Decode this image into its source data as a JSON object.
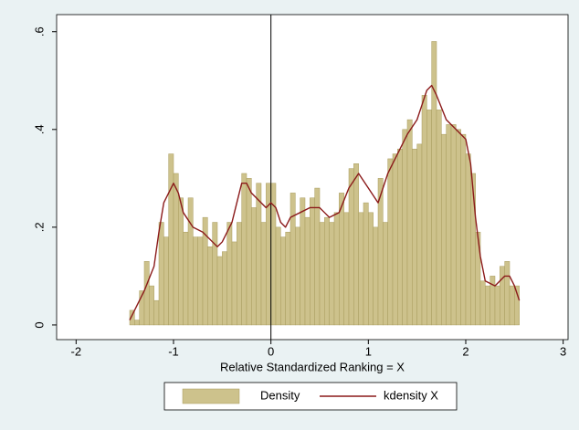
{
  "chart_data": {
    "type": "histogram",
    "xlabel": "Relative Standardized Ranking = X",
    "bins": [
      -1.45,
      -1.4,
      -1.35,
      -1.3,
      -1.25,
      -1.2,
      -1.15,
      -1.1,
      -1.05,
      -1.0,
      -0.95,
      -0.9,
      -0.85,
      -0.8,
      -0.75,
      -0.7,
      -0.65,
      -0.6,
      -0.55,
      -0.5,
      -0.45,
      -0.4,
      -0.35,
      -0.3,
      -0.25,
      -0.2,
      -0.15,
      -0.1,
      -0.05,
      0.0,
      0.05,
      0.1,
      0.15,
      0.2,
      0.25,
      0.3,
      0.35,
      0.4,
      0.45,
      0.5,
      0.55,
      0.6,
      0.65,
      0.7,
      0.75,
      0.8,
      0.85,
      0.9,
      0.95,
      1.0,
      1.05,
      1.1,
      1.15,
      1.2,
      1.25,
      1.3,
      1.35,
      1.4,
      1.45,
      1.5,
      1.55,
      1.6,
      1.65,
      1.7,
      1.75,
      1.8,
      1.85,
      1.9,
      1.95,
      2.0,
      2.05,
      2.1,
      2.15,
      2.2,
      2.25,
      2.3,
      2.35,
      2.4,
      2.45,
      2.5,
      2.55
    ],
    "series": [
      {
        "name": "Density",
        "color": "#cdc28c",
        "values": [
          0.03,
          0.01,
          0.07,
          0.13,
          0.08,
          0.05,
          0.21,
          0.18,
          0.35,
          0.31,
          0.26,
          0.19,
          0.26,
          0.18,
          0.18,
          0.22,
          0.16,
          0.21,
          0.14,
          0.15,
          0.21,
          0.17,
          0.21,
          0.31,
          0.3,
          0.24,
          0.29,
          0.21,
          0.29,
          0.29,
          0.2,
          0.18,
          0.19,
          0.27,
          0.2,
          0.26,
          0.22,
          0.26,
          0.28,
          0.21,
          0.22,
          0.21,
          0.23,
          0.27,
          0.23,
          0.32,
          0.33,
          0.23,
          0.25,
          0.23,
          0.2,
          0.3,
          0.21,
          0.34,
          0.35,
          0.36,
          0.4,
          0.42,
          0.36,
          0.37,
          0.47,
          0.44,
          0.58,
          0.44,
          0.39,
          0.41,
          0.41,
          0.4,
          0.39,
          0.35,
          0.31,
          0.19,
          0.09,
          0.08,
          0.1,
          0.08,
          0.12,
          0.13,
          0.08,
          0.08
        ]
      }
    ],
    "lines": [
      {
        "name": "kdensity X",
        "color": "#8b1a1a",
        "x": [
          -1.45,
          -1.4,
          -1.3,
          -1.2,
          -1.15,
          -1.1,
          -1.0,
          -0.95,
          -0.9,
          -0.8,
          -0.7,
          -0.6,
          -0.55,
          -0.5,
          -0.4,
          -0.35,
          -0.3,
          -0.25,
          -0.2,
          -0.1,
          -0.05,
          0.0,
          0.05,
          0.1,
          0.15,
          0.2,
          0.3,
          0.4,
          0.5,
          0.55,
          0.6,
          0.7,
          0.8,
          0.9,
          1.0,
          1.1,
          1.2,
          1.3,
          1.4,
          1.5,
          1.55,
          1.6,
          1.65,
          1.7,
          1.8,
          1.9,
          2.0,
          2.05,
          2.1,
          2.15,
          2.2,
          2.3,
          2.4,
          2.45,
          2.5,
          2.55
        ],
        "values": [
          0.01,
          0.03,
          0.07,
          0.12,
          0.19,
          0.25,
          0.29,
          0.27,
          0.23,
          0.2,
          0.19,
          0.17,
          0.16,
          0.17,
          0.21,
          0.25,
          0.29,
          0.29,
          0.27,
          0.25,
          0.24,
          0.25,
          0.24,
          0.21,
          0.2,
          0.22,
          0.23,
          0.24,
          0.24,
          0.23,
          0.22,
          0.23,
          0.28,
          0.31,
          0.28,
          0.25,
          0.31,
          0.35,
          0.39,
          0.42,
          0.45,
          0.48,
          0.49,
          0.47,
          0.42,
          0.4,
          0.38,
          0.33,
          0.22,
          0.14,
          0.09,
          0.08,
          0.1,
          0.1,
          0.08,
          0.05
        ]
      }
    ],
    "xline": 0,
    "xlim": [
      -2.2,
      3.05
    ],
    "xticks": [
      -2,
      -1,
      0,
      1,
      2,
      3
    ],
    "ylim": [
      -0.03,
      0.635
    ],
    "yticks": [
      {
        "value": 0,
        "label": "0"
      },
      {
        "value": 0.2,
        "label": ".2"
      },
      {
        "value": 0.4,
        "label": ".4"
      },
      {
        "value": 0.6,
        "label": ".6"
      }
    ],
    "grid": false
  }
}
